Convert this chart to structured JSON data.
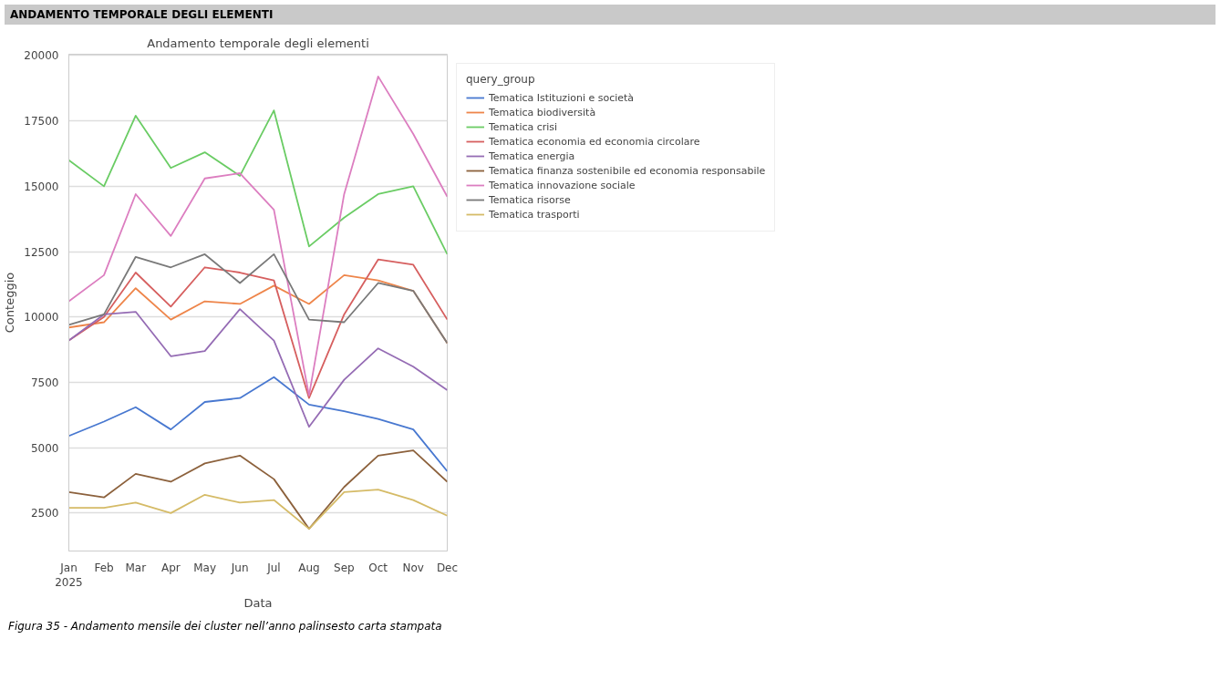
{
  "chart_data": {
    "type": "line",
    "title": "Andamento temporale degli elementi",
    "xlabel": "Data",
    "ylabel": "Conteggio",
    "legend_title": "query_group",
    "annotations": [
      "ANDAMENTO TEMPORALE DEGLI ELEMENTI",
      "Figura 35 -  Andamento mensile dei cluster nell’anno palinsesto carta stampata"
    ],
    "x": [
      "2025-01",
      "2025-02",
      "2025-03",
      "2025-04",
      "2025-05",
      "2025-06",
      "2025-07",
      "2025-08",
      "2025-09",
      "2025-10",
      "2025-11",
      "2025-12"
    ],
    "xlim": [
      "2025-01",
      "2025-12"
    ],
    "xticks": [
      {
        "value": "2025-01",
        "label": "Jan\n2025"
      },
      {
        "value": "2025-02",
        "label": "Feb"
      },
      {
        "value": "2025-03",
        "label": "Mar"
      },
      {
        "value": "2025-04",
        "label": "Apr"
      },
      {
        "value": "2025-05",
        "label": "May"
      },
      {
        "value": "2025-06",
        "label": "Jun"
      },
      {
        "value": "2025-07",
        "label": "Jul"
      },
      {
        "value": "2025-08",
        "label": "Aug"
      },
      {
        "value": "2025-09",
        "label": "Sep"
      },
      {
        "value": "2025-10",
        "label": "Oct"
      },
      {
        "value": "2025-11",
        "label": "Nov"
      },
      {
        "value": "2025-12",
        "label": "Dec"
      }
    ],
    "ylim": [
      1050,
      20050
    ],
    "yticks": [
      2500,
      5000,
      7500,
      10000,
      12500,
      15000,
      17500,
      20000
    ],
    "grid": "y",
    "legend": "right",
    "line_style": "solid",
    "series": [
      {
        "name": "Tematica Istituzioni e società",
        "color": "#4878d0",
        "values": [
          5450,
          6000,
          6550,
          5700,
          6750,
          6900,
          7700,
          6650,
          6400,
          6100,
          5700,
          4100
        ]
      },
      {
        "name": "Tematica biodiversità",
        "color": "#ee854a",
        "values": [
          9600,
          9800,
          11100,
          9900,
          10600,
          10500,
          11200,
          10500,
          11600,
          11400,
          11000,
          9000
        ]
      },
      {
        "name": "Tematica crisi",
        "color": "#6acc64",
        "values": [
          16000,
          15000,
          17700,
          15700,
          16300,
          15400,
          17900,
          12700,
          13800,
          14700,
          15000,
          12400
        ]
      },
      {
        "name": "Tematica economia ed economia circolare",
        "color": "#d65f5f",
        "values": [
          9100,
          10000,
          11700,
          10400,
          11900,
          11700,
          11400,
          6900,
          10100,
          12200,
          12000,
          9900
        ]
      },
      {
        "name": "Tematica energia",
        "color": "#956cb4",
        "values": [
          9100,
          10100,
          10200,
          8500,
          8700,
          10300,
          9100,
          5800,
          7600,
          8800,
          8100,
          7200
        ]
      },
      {
        "name": "Tematica finanza sostenibile ed economia responsabile",
        "color": "#8c613c",
        "values": [
          3300,
          3100,
          4000,
          3700,
          4400,
          4700,
          3800,
          1900,
          3500,
          4700,
          4900,
          3700
        ]
      },
      {
        "name": "Tematica innovazione sociale",
        "color": "#dc7ec0",
        "values": [
          10600,
          11600,
          14700,
          13100,
          15300,
          15500,
          14100,
          7000,
          14700,
          19200,
          17000,
          14600
        ]
      },
      {
        "name": "Tematica risorse",
        "color": "#797979",
        "values": [
          9700,
          10100,
          12300,
          11900,
          12400,
          11300,
          12400,
          9900,
          9800,
          11300,
          11000,
          9000
        ]
      },
      {
        "name": "Tematica trasporti",
        "color": "#d5bb67",
        "values": [
          2700,
          2700,
          2900,
          2500,
          3200,
          2900,
          3000,
          1900,
          3300,
          3400,
          3000,
          2400
        ]
      }
    ]
  }
}
